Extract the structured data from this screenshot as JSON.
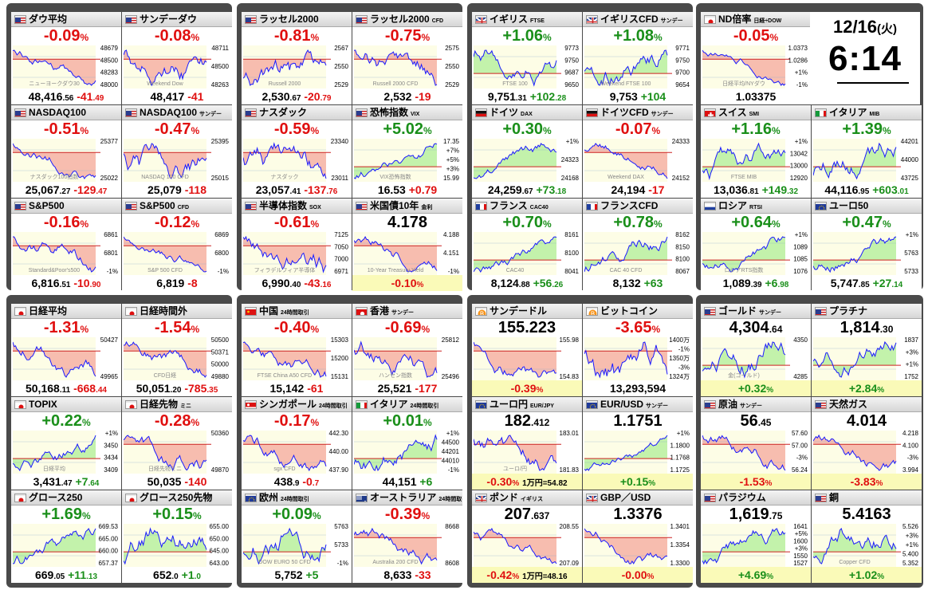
{
  "clock": {
    "date": "12/16",
    "weekday": "(火)",
    "time": "6:14"
  },
  "colors": {
    "up": "#1a8f1a",
    "down": "#e01010",
    "up_fill": "#b8f0a0",
    "down_fill": "#f6b2a4",
    "band": "#fafab8"
  },
  "tiles": [
    {
      "name": "ダウ平均",
      "sub": "",
      "flag": "us",
      "big": "-0.09",
      "big_unit": "%",
      "dir": "dn",
      "ticks": [
        "48679",
        "48500",
        "48283",
        "48000"
      ],
      "watermark": "ニューヨークダウ30",
      "foot_value": "48,416",
      "foot_dec": ".56",
      "foot_change": "-41",
      "change_dec": ".49",
      "change_dir": "dn",
      "extra": ""
    },
    {
      "name": "サンデーダウ",
      "sub": "",
      "flag": "us",
      "big": "-0.08",
      "big_unit": "%",
      "dir": "dn",
      "ticks": [
        "48711",
        "48500",
        "48263"
      ],
      "watermark": "Weekend Dow",
      "foot_value": "48,417",
      "foot_dec": "",
      "foot_change": "-41",
      "change_dec": "",
      "change_dir": "dn",
      "extra": ""
    },
    {
      "name": "ラッセル2000",
      "sub": "",
      "flag": "us",
      "big": "-0.81",
      "big_unit": "%",
      "dir": "dn",
      "ticks": [
        "2567",
        "2550",
        "2529"
      ],
      "watermark": "Russell 2000",
      "foot_value": "2,530",
      "foot_dec": ".67",
      "foot_change": "-20",
      "change_dec": ".79",
      "change_dir": "dn",
      "extra": ""
    },
    {
      "name": "ラッセル2000",
      "sub": "CFD",
      "flag": "us",
      "big": "-0.75",
      "big_unit": "%",
      "dir": "dn",
      "ticks": [
        "2575",
        "2550",
        "2529"
      ],
      "watermark": "Russell 2000 CFD",
      "foot_value": "2,532",
      "foot_dec": "",
      "foot_change": "-19",
      "change_dec": "",
      "change_dir": "dn",
      "extra": ""
    },
    {
      "name": "イギリス",
      "sub": "FTSE",
      "flag": "uk",
      "big": "+1.06",
      "big_unit": "%",
      "dir": "up",
      "ticks": [
        "9773",
        "9750",
        "9687",
        "9650"
      ],
      "watermark": "FTSE 100",
      "foot_value": "9,751",
      "foot_dec": ".31",
      "foot_change": "+102",
      "change_dec": ".28",
      "change_dir": "up",
      "extra": ""
    },
    {
      "name": "イギリスCFD",
      "sub": "サンデー",
      "flag": "uk",
      "big": "+1.08",
      "big_unit": "%",
      "dir": "up",
      "ticks": [
        "9771",
        "9750",
        "9700",
        "9654"
      ],
      "watermark": "Weekend FTSE 100",
      "foot_value": "9,753",
      "foot_dec": "",
      "foot_change": "+104",
      "change_dec": "",
      "change_dir": "up",
      "extra": ""
    },
    {
      "name": "ND倍率",
      "sub": "日経÷DOW",
      "flag": "jp",
      "big": "-0.05",
      "big_unit": "%",
      "dir": "dn",
      "ticks": [
        "1.0373",
        "1.0286",
        "+1%",
        "-1%"
      ],
      "watermark": "日経平均/NYダウ",
      "foot_value": "1.03375",
      "foot_dec": "",
      "foot_change": "",
      "change_dec": "",
      "change_dir": "bk",
      "extra": ""
    },
    {
      "name": "NASDAQ100",
      "sub": "",
      "flag": "us",
      "big": "-0.51",
      "big_unit": "%",
      "dir": "dn",
      "ticks": [
        "25377",
        "25022"
      ],
      "watermark": "ナスダック100指数",
      "foot_value": "25,067",
      "foot_dec": ".27",
      "foot_change": "-129",
      "change_dec": ".47",
      "change_dir": "dn",
      "extra": ""
    },
    {
      "name": "NASDAQ100",
      "sub": "サンデー",
      "flag": "us",
      "big": "-0.47",
      "big_unit": "%",
      "dir": "dn",
      "ticks": [
        "25395",
        "25015"
      ],
      "watermark": "NASDAQ 100 CFD",
      "foot_value": "25,079",
      "foot_dec": "",
      "foot_change": "-118",
      "change_dec": "",
      "change_dir": "dn",
      "extra": ""
    },
    {
      "name": "ナスダック",
      "sub": "",
      "flag": "us",
      "big": "-0.59",
      "big_unit": "%",
      "dir": "dn",
      "ticks": [
        "23340",
        "23011"
      ],
      "watermark": "ナスダック",
      "foot_value": "23,057",
      "foot_dec": ".41",
      "foot_change": "-137",
      "change_dec": ".76",
      "change_dir": "dn",
      "extra": ""
    },
    {
      "name": "恐怖指数",
      "sub": "VIX",
      "flag": "us",
      "big": "+5.02",
      "big_unit": "%",
      "dir": "up",
      "ticks": [
        "17.35",
        "+7%",
        "+5%",
        "+3%",
        "15.99"
      ],
      "watermark": "VIX恐怖指数",
      "foot_value": "16.53",
      "foot_dec": "",
      "foot_change": "+0.79",
      "change_dec": "",
      "change_dir": "dn",
      "extra": ""
    },
    {
      "name": "ドイツ",
      "sub": "DAX",
      "flag": "de",
      "big": "+0.30",
      "big_unit": "%",
      "dir": "up",
      "ticks": [
        "+1%",
        "24323",
        "24168"
      ],
      "watermark": "",
      "foot_value": "24,259",
      "foot_dec": ".67",
      "foot_change": "+73",
      "change_dec": ".18",
      "change_dir": "up",
      "extra": ""
    },
    {
      "name": "ドイツCFD",
      "sub": "サンデー",
      "flag": "de",
      "big": "-0.07",
      "big_unit": "%",
      "dir": "dn",
      "ticks": [
        "24333",
        "24152"
      ],
      "watermark": "Weekend DAX",
      "foot_value": "24,194",
      "foot_dec": "",
      "foot_change": "-17",
      "change_dec": "",
      "change_dir": "dn",
      "extra": ""
    },
    {
      "name": "スイス",
      "sub": "SMI",
      "flag": "ch",
      "big": "+1.16",
      "big_unit": "%",
      "dir": "up",
      "ticks": [
        "+1%",
        "13042",
        "13000",
        "12920"
      ],
      "watermark": "FTSE MIB",
      "foot_value": "13,036",
      "foot_dec": ".81",
      "foot_change": "+149",
      "change_dec": ".32",
      "change_dir": "up",
      "extra": ""
    },
    {
      "name": "イタリア",
      "sub": "MIB",
      "flag": "it",
      "big": "+1.39",
      "big_unit": "%",
      "dir": "up",
      "ticks": [
        "44201",
        "44000",
        "43725"
      ],
      "watermark": "",
      "foot_value": "44,116",
      "foot_dec": ".95",
      "foot_change": "+603",
      "change_dec": ".01",
      "change_dir": "up",
      "extra": ""
    },
    {
      "name": "S&P500",
      "sub": "",
      "flag": "us",
      "big": "-0.16",
      "big_unit": "%",
      "dir": "dn",
      "ticks": [
        "6861",
        "6801",
        "-1%"
      ],
      "watermark": "Standard&Poor's500",
      "foot_value": "6,816",
      "foot_dec": ".51",
      "foot_change": "-10",
      "change_dec": ".90",
      "change_dir": "dn",
      "extra": ""
    },
    {
      "name": "S&P500",
      "sub": "CFD",
      "flag": "us",
      "big": "-0.12",
      "big_unit": "%",
      "dir": "dn",
      "ticks": [
        "6869",
        "6800",
        "-1%"
      ],
      "watermark": "S&P 500 CFD",
      "foot_value": "6,819",
      "foot_dec": "",
      "foot_change": "-8",
      "change_dec": "",
      "change_dir": "dn",
      "extra": ""
    },
    {
      "name": "半導体指数",
      "sub": "SOX",
      "flag": "us",
      "big": "-0.61",
      "big_unit": "%",
      "dir": "dn",
      "ticks": [
        "7125",
        "7050",
        "7000",
        "6971"
      ],
      "watermark": "フィラデルフィア半導体",
      "foot_value": "6,990",
      "foot_dec": ".40",
      "foot_change": "-43",
      "change_dec": ".16",
      "change_dir": "dn",
      "extra": ""
    },
    {
      "name": "米国債10年",
      "sub": "金利",
      "flag": "us",
      "big": "4.178",
      "big_unit": "",
      "dir": "bk",
      "ticks": [
        "4.188",
        "4.151",
        "-1%"
      ],
      "watermark": "10-Year Treasury Yield",
      "foot_value": "",
      "foot_dec": "",
      "foot_change": "-0.10",
      "change_dec": "",
      "change_dir": "dn",
      "change_unit": "%",
      "extra": ""
    },
    {
      "name": "フランス",
      "sub": "CAC40",
      "flag": "fr",
      "big": "+0.70",
      "big_unit": "%",
      "dir": "up",
      "ticks": [
        "8161",
        "8100",
        "8041"
      ],
      "watermark": "CAC40",
      "foot_value": "8,124",
      "foot_dec": ".88",
      "foot_change": "+56",
      "change_dec": ".26",
      "change_dir": "up",
      "extra": ""
    },
    {
      "name": "フランスCFD",
      "sub": "",
      "flag": "fr",
      "big": "+0.78",
      "big_unit": "%",
      "dir": "up",
      "ticks": [
        "8162",
        "8150",
        "8100",
        "8067"
      ],
      "watermark": "CAC 40 CFD",
      "foot_value": "8,132",
      "foot_dec": "",
      "foot_change": "+63",
      "change_dec": "",
      "change_dir": "up",
      "extra": ""
    },
    {
      "name": "ロシア",
      "sub": "RTSI",
      "flag": "ru",
      "big": "+0.64",
      "big_unit": "%",
      "dir": "up",
      "ticks": [
        "+1%",
        "1089",
        "1085",
        "1076"
      ],
      "watermark": "ロシアRTS指数",
      "foot_value": "1,089",
      "foot_dec": ".39",
      "foot_change": "+6",
      "change_dec": ".98",
      "change_dir": "up",
      "extra": ""
    },
    {
      "name": "ユーロ50",
      "sub": "",
      "flag": "eu",
      "big": "+0.47",
      "big_unit": "%",
      "dir": "up",
      "ticks": [
        "+1%",
        "5763",
        "5733"
      ],
      "watermark": "",
      "foot_value": "5,747",
      "foot_dec": ".85",
      "foot_change": "+27",
      "change_dec": ".14",
      "change_dir": "up",
      "extra": ""
    },
    {
      "name": "日経平均",
      "sub": "",
      "flag": "jp",
      "big": "-1.31",
      "big_unit": "%",
      "dir": "dn",
      "ticks": [
        "50427",
        "49965"
      ],
      "watermark": "",
      "foot_value": "50,168",
      "foot_dec": ".11",
      "foot_change": "-668",
      "change_dec": ".44",
      "change_dir": "dn",
      "extra": ""
    },
    {
      "name": "日経時間外",
      "sub": "",
      "flag": "jp",
      "big": "-1.54",
      "big_unit": "%",
      "dir": "dn",
      "ticks": [
        "50500",
        "50371",
        "50000",
        "49880"
      ],
      "watermark": "CFD日経",
      "foot_value": "50,051",
      "foot_dec": ".20",
      "foot_change": "-785",
      "change_dec": ".35",
      "change_dir": "dn",
      "extra": ""
    },
    {
      "name": "中国",
      "sub": "24時間取引",
      "flag": "cn",
      "big": "-0.40",
      "big_unit": "%",
      "dir": "dn",
      "ticks": [
        "15303",
        "15200",
        "15131"
      ],
      "watermark": "FTSE China A50 CFD",
      "foot_value": "15,142",
      "foot_dec": "",
      "foot_change": "-61",
      "change_dec": "",
      "change_dir": "dn",
      "extra": ""
    },
    {
      "name": "香港",
      "sub": "サンデー",
      "flag": "hk",
      "big": "-0.69",
      "big_unit": "%",
      "dir": "dn",
      "ticks": [
        "25812",
        "25496"
      ],
      "watermark": "ハンセン指数",
      "foot_value": "25,521",
      "foot_dec": "",
      "foot_change": "-177",
      "change_dec": "",
      "change_dir": "dn",
      "extra": ""
    },
    {
      "name": "サンデードル",
      "sub": "",
      "flag": "btc",
      "big": "155.223",
      "big_unit": "",
      "dir": "bk",
      "ticks": [
        "155.98",
        "154.83"
      ],
      "watermark": "",
      "foot_value": "",
      "foot_dec": "",
      "foot_change": "-0.39",
      "change_dec": "",
      "change_dir": "dn",
      "change_unit": "%",
      "extra": ""
    },
    {
      "name": "ビットコイン",
      "sub": "",
      "flag": "btc",
      "big": "-3.65",
      "big_unit": "%",
      "dir": "dn",
      "ticks": [
        "1400万",
        "-1%",
        "1350万",
        "-3%",
        "1324万"
      ],
      "watermark": "",
      "foot_value": "13,293,594",
      "foot_dec": "",
      "foot_change": "",
      "change_dec": "",
      "change_dir": "bk",
      "extra": ""
    },
    {
      "name": "ゴールド",
      "sub": "サンデー",
      "flag": "us",
      "big": "4,304",
      "big_dec": ".64",
      "big_unit": "",
      "dir": "bk",
      "ticks": [
        "4350",
        "4285"
      ],
      "watermark": "金(ゴールド)",
      "foot_value": "",
      "foot_dec": "",
      "foot_change": "+0.32",
      "change_dec": "",
      "change_dir": "up",
      "change_unit": "%",
      "extra": ""
    },
    {
      "name": "プラチナ",
      "sub": "",
      "flag": "us",
      "big": "1,814",
      "big_dec": ".30",
      "big_unit": "",
      "dir": "bk",
      "ticks": [
        "1837",
        "+3%",
        "+1%",
        "1752"
      ],
      "watermark": "",
      "foot_value": "",
      "foot_dec": "",
      "foot_change": "+2.84",
      "change_dec": "",
      "change_dir": "up",
      "change_unit": "%",
      "extra": ""
    },
    {
      "name": "TOPIX",
      "sub": "",
      "flag": "jp",
      "big": "+0.22",
      "big_unit": "%",
      "dir": "up",
      "ticks": [
        "+1%",
        "3450",
        "3434",
        "3409"
      ],
      "watermark": "日経平均",
      "foot_value": "3,431",
      "foot_dec": ".47",
      "foot_change": "+7",
      "change_dec": ".64",
      "change_dir": "up",
      "extra": ""
    },
    {
      "name": "日経先物",
      "sub": "ミニ",
      "flag": "jp",
      "big": "-0.28",
      "big_unit": "%",
      "dir": "dn",
      "ticks": [
        "50360",
        "49870"
      ],
      "watermark": "日経先物ミニ",
      "foot_value": "50,035",
      "foot_dec": "",
      "foot_change": "-140",
      "change_dec": "",
      "change_dir": "dn",
      "extra": ""
    },
    {
      "name": "シンガポール",
      "sub": "24時間取引",
      "flag": "sg",
      "big": "-0.17",
      "big_unit": "%",
      "dir": "dn",
      "ticks": [
        "442.30",
        "440.00",
        "437.90"
      ],
      "watermark": "sgx CFD",
      "foot_value": "438",
      "foot_dec": ".9",
      "foot_change": "-0",
      "change_dec": ".7",
      "change_dir": "dn",
      "extra": ""
    },
    {
      "name": "イタリア",
      "sub": "24時間取引",
      "flag": "it",
      "big": "+0.01",
      "big_unit": "%",
      "dir": "up",
      "ticks": [
        "+1%",
        "44500",
        "44201",
        "44010",
        "-1%"
      ],
      "watermark": "",
      "foot_value": "44,151",
      "foot_dec": "",
      "foot_change": "+6",
      "change_dec": "",
      "change_dir": "up",
      "extra": ""
    },
    {
      "name": "ユーロ円",
      "sub": "EUR/JPY",
      "flag": "eu",
      "big": "182",
      "big_dec": ".412",
      "big_unit": "",
      "dir": "bk",
      "ticks": [
        "183.01",
        "181.83"
      ],
      "watermark": "ユーロ/円",
      "foot_value": "",
      "foot_dec": "",
      "foot_change": "-0.30",
      "change_dec": "",
      "change_dir": "dn",
      "change_unit": "%",
      "extra": "1万円=54.82"
    },
    {
      "name": "EUR/USD",
      "sub": "サンデー",
      "flag": "eu",
      "big": "1.1751",
      "big_unit": "",
      "dir": "bk",
      "ticks": [
        "+1%",
        "1.1800",
        "1.1768",
        "1.1725"
      ],
      "watermark": "",
      "foot_value": "",
      "foot_dec": "",
      "foot_change": "+0.15",
      "change_dec": "",
      "change_dir": "up",
      "change_unit": "%",
      "extra": ""
    },
    {
      "name": "原油",
      "sub": "サンデー",
      "flag": "us",
      "big": "56",
      "big_dec": ".45",
      "big_unit": "",
      "dir": "bk",
      "ticks": [
        "57.60",
        "57.00",
        "-3%",
        "56.24"
      ],
      "watermark": "",
      "foot_value": "",
      "foot_dec": "",
      "foot_change": "-1.53",
      "change_dec": "",
      "change_dir": "dn",
      "change_unit": "%",
      "extra": ""
    },
    {
      "name": "天然ガス",
      "sub": "",
      "flag": "us",
      "big": "4.014",
      "big_unit": "",
      "dir": "bk",
      "ticks": [
        "4.218",
        "4.100",
        "-3%",
        "3.994"
      ],
      "watermark": "",
      "foot_value": "",
      "foot_dec": "",
      "foot_change": "-3.83",
      "change_dec": "",
      "change_dir": "dn",
      "change_unit": "%",
      "extra": ""
    },
    {
      "name": "グロース250",
      "sub": "",
      "flag": "jp",
      "big": "+1.69",
      "big_unit": "%",
      "dir": "up",
      "ticks": [
        "669.53",
        "665.00",
        "660.00",
        "657.37"
      ],
      "watermark": "",
      "foot_value": "669",
      "foot_dec": ".05",
      "foot_change": "+11",
      "change_dec": ".13",
      "change_dir": "up",
      "extra": ""
    },
    {
      "name": "グロース250先物",
      "sub": "",
      "flag": "jp",
      "big": "+0.15",
      "big_unit": "%",
      "dir": "up",
      "ticks": [
        "655.00",
        "650.00",
        "645.00",
        "643.00"
      ],
      "watermark": "",
      "foot_value": "652",
      "foot_dec": ".0",
      "foot_change": "+1",
      "change_dec": ".0",
      "change_dir": "up",
      "extra": ""
    },
    {
      "name": "欧州",
      "sub": "24時間取引",
      "flag": "eu",
      "big": "+0.09",
      "big_unit": "%",
      "dir": "up",
      "ticks": [
        "5763",
        "5733",
        "-1%"
      ],
      "watermark": "DOW EURO 50 CFD",
      "foot_value": "5,752",
      "foot_dec": "",
      "foot_change": "+5",
      "change_dec": "",
      "change_dir": "up",
      "extra": ""
    },
    {
      "name": "オーストラリア",
      "sub": "24時間取引",
      "flag": "au",
      "big": "-0.39",
      "big_unit": "%",
      "dir": "dn",
      "ticks": [
        "8668",
        "8608"
      ],
      "watermark": "Australia 200 CFD",
      "foot_value": "8,633",
      "foot_dec": "",
      "foot_change": "-33",
      "change_dec": "",
      "change_dir": "dn",
      "extra": ""
    },
    {
      "name": "ポンド",
      "sub": "イギリス",
      "flag": "uk",
      "big": "207",
      "big_dec": ".637",
      "big_unit": "",
      "dir": "bk",
      "ticks": [
        "208.55",
        "207.09"
      ],
      "watermark": "",
      "foot_value": "",
      "foot_dec": "",
      "foot_change": "-0.42",
      "change_dec": "",
      "change_dir": "dn",
      "change_unit": "%",
      "extra": "1万円=48.16"
    },
    {
      "name": "GBP／USD",
      "sub": "",
      "flag": "uk",
      "big": "1.3376",
      "big_unit": "",
      "dir": "bk",
      "ticks": [
        "1.3401",
        "1.3354",
        "1.3300"
      ],
      "watermark": "",
      "foot_value": "",
      "foot_dec": "",
      "foot_change": "-0.00",
      "change_dec": "",
      "change_dir": "dn",
      "change_unit": "%",
      "extra": ""
    },
    {
      "name": "パラジウム",
      "sub": "",
      "flag": "us",
      "big": "1,619",
      "big_dec": ".75",
      "big_unit": "",
      "dir": "bk",
      "ticks": [
        "1641",
        "+5%",
        "1600",
        "+3%",
        "1550",
        "1527"
      ],
      "watermark": "",
      "foot_value": "",
      "foot_dec": "",
      "foot_change": "+4.69",
      "change_dec": "",
      "change_dir": "up",
      "change_unit": "%",
      "extra": ""
    },
    {
      "name": "銅",
      "sub": "",
      "flag": "us",
      "big": "5.4163",
      "big_unit": "",
      "dir": "bk",
      "ticks": [
        "5.526",
        "+3%",
        "+1%",
        "5.400",
        "5.352"
      ],
      "watermark": "Copper CFD",
      "foot_value": "",
      "foot_dec": "",
      "foot_change": "+1.02",
      "change_dec": "",
      "change_dir": "up",
      "change_unit": "%",
      "extra": ""
    }
  ]
}
